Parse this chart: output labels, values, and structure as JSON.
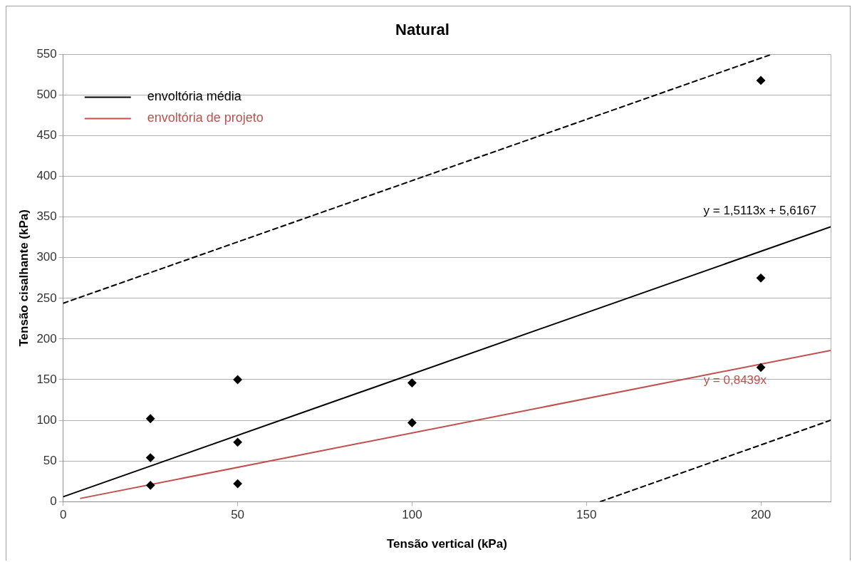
{
  "chart_data": {
    "type": "scatter",
    "title": "Natural",
    "xlabel": "Tensão vertical (kPa)",
    "ylabel": "Tensão cisalhante (kPa)",
    "xlim": [
      0,
      220
    ],
    "xticks": [
      0,
      50,
      100,
      150,
      200
    ],
    "ylim": [
      0,
      550
    ],
    "yticks": [
      0,
      50,
      100,
      150,
      200,
      250,
      300,
      350,
      400,
      450,
      500,
      550
    ],
    "grid": "y",
    "legend": "top left",
    "series": [
      {
        "color": "#000000",
        "marker": "diamond",
        "x": [
          25,
          25,
          25,
          50,
          50,
          50,
          100,
          100,
          200,
          200,
          200
        ],
        "values": [
          102,
          54,
          20,
          150,
          73,
          22,
          146,
          97,
          518,
          275,
          165
        ]
      },
      {
        "type": "line",
        "name": "envoltória média",
        "color": "#000000",
        "marker": "none",
        "x": [
          0,
          220
        ],
        "values": [
          6,
          338
        ]
      },
      {
        "type": "line",
        "name": "envoltória de projeto",
        "color": "#c0504d",
        "marker": "none",
        "x": [
          5,
          220
        ],
        "values": [
          4,
          186
        ]
      },
      {
        "type": "line",
        "color": "#000000",
        "marker": "none",
        "line_style": "dashed",
        "x": [
          0,
          203
        ],
        "values": [
          244,
          550
        ]
      },
      {
        "type": "line",
        "color": "#000000",
        "marker": "none",
        "line_style": "dashed",
        "x": [
          154,
          220
        ],
        "values": [
          0,
          100
        ]
      }
    ],
    "annotations": [
      "y = 1,5113x + 5,6167",
      "y = 0,8439x"
    ]
  }
}
